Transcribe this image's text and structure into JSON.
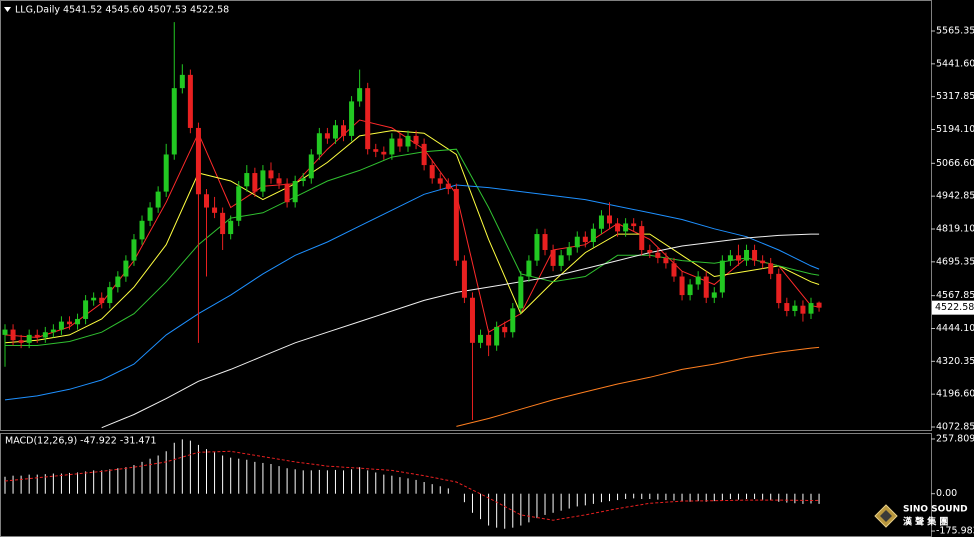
{
  "chart_data": [
    {
      "type": "candlestick",
      "title": "LLG,Daily  4541.52 4545.60 4507.53 4522.58",
      "up_color": "#22c822",
      "down_color": "#e82020",
      "open": [
        4420,
        4440,
        4400,
        4390,
        4420,
        4410,
        4430,
        4440,
        4470,
        4460,
        4480,
        4550,
        4560,
        4540,
        4600,
        4640,
        4700,
        4780,
        4850,
        4900,
        4960,
        5100,
        5350,
        5400,
        5200,
        4950,
        4900,
        4880,
        4800,
        4850,
        4980,
        5030,
        4960,
        5040,
        5010,
        4990,
        4920,
        5000,
        5010,
        5100,
        5180,
        5160,
        5210,
        5170,
        5300,
        5350,
        5120,
        5110,
        5100,
        5160,
        5130,
        5170,
        5140,
        5060,
        5010,
        4990,
        4970,
        4700,
        4560,
        4390,
        4420,
        4380,
        4450,
        4430,
        4520,
        4640,
        4700,
        4800,
        4740,
        4680,
        4720,
        4750,
        4790,
        4770,
        4820,
        4870,
        4840,
        4810,
        4840,
        4830,
        4740,
        4730,
        4710,
        4690,
        4640,
        4570,
        4610,
        4640,
        4560,
        4580,
        4700,
        4720,
        4700,
        4740,
        4700,
        4690,
        4650,
        4540,
        4510,
        4530,
        4500,
        4541.52
      ],
      "high": [
        4460,
        4460,
        4420,
        4440,
        4440,
        4450,
        4460,
        4490,
        4490,
        4500,
        4570,
        4580,
        4580,
        4620,
        4660,
        4720,
        4800,
        4870,
        4920,
        4980,
        5140,
        5599,
        5440,
        5420,
        5220,
        4970,
        4940,
        4900,
        4870,
        5000,
        5060,
        5050,
        5060,
        5070,
        5030,
        5010,
        5020,
        5030,
        5120,
        5200,
        5200,
        5230,
        5230,
        5320,
        5420,
        5370,
        5140,
        5130,
        5180,
        5180,
        5190,
        5190,
        5160,
        5080,
        5030,
        5010,
        4990,
        4720,
        4580,
        4440,
        4440,
        4470,
        4470,
        4540,
        4660,
        4720,
        4820,
        4820,
        4760,
        4740,
        4770,
        4810,
        4810,
        4840,
        4890,
        4920,
        4860,
        4860,
        4860,
        4850,
        4760,
        4750,
        4730,
        4710,
        4660,
        4630,
        4660,
        4660,
        4600,
        4720,
        4740,
        4760,
        4760,
        4760,
        4720,
        4710,
        4670,
        4560,
        4550,
        4550,
        4560,
        4545.6
      ],
      "low": [
        4300,
        4380,
        4370,
        4370,
        4390,
        4390,
        4410,
        4420,
        4440,
        4440,
        4460,
        4530,
        4520,
        4520,
        4580,
        4620,
        4680,
        4760,
        4830,
        4880,
        4940,
        5080,
        5330,
        5180,
        4390,
        4640,
        4860,
        4740,
        4780,
        4830,
        4960,
        4940,
        4940,
        4990,
        4970,
        4900,
        4900,
        4980,
        4990,
        5080,
        5140,
        5140,
        5150,
        5150,
        5280,
        5100,
        5090,
        5080,
        5080,
        5110,
        5110,
        5120,
        5040,
        4990,
        4970,
        4950,
        4680,
        4540,
        4099,
        4370,
        4340,
        4360,
        4410,
        4410,
        4500,
        4620,
        4680,
        4720,
        4660,
        4660,
        4700,
        4730,
        4750,
        4750,
        4800,
        4820,
        4790,
        4790,
        4810,
        4720,
        4710,
        4690,
        4670,
        4620,
        4550,
        4550,
        4590,
        4540,
        4540,
        4560,
        4680,
        4680,
        4680,
        4680,
        4670,
        4630,
        4520,
        4490,
        4490,
        4470,
        4480,
        4507.53
      ],
      "close": [
        4440,
        4400,
        4390,
        4420,
        4410,
        4430,
        4440,
        4470,
        4460,
        4480,
        4550,
        4560,
        4540,
        4600,
        4640,
        4700,
        4780,
        4850,
        4900,
        4960,
        5100,
        5350,
        5400,
        5200,
        4950,
        4900,
        4880,
        4800,
        4850,
        4980,
        5030,
        4960,
        5040,
        5010,
        4990,
        4920,
        5000,
        5010,
        5100,
        5180,
        5160,
        5210,
        5170,
        5300,
        5350,
        5120,
        5110,
        5100,
        5160,
        5130,
        5170,
        5140,
        5060,
        5010,
        4990,
        4970,
        4700,
        4560,
        4390,
        4420,
        4380,
        4450,
        4430,
        4520,
        4640,
        4700,
        4800,
        4740,
        4680,
        4720,
        4750,
        4790,
        4770,
        4820,
        4870,
        4840,
        4810,
        4840,
        4830,
        4740,
        4730,
        4710,
        4690,
        4640,
        4570,
        4610,
        4640,
        4560,
        4580,
        4700,
        4720,
        4700,
        4740,
        4700,
        4690,
        4650,
        4540,
        4510,
        4530,
        4500,
        4540,
        4522.58
      ],
      "series": [
        {
          "color": "#ff2a2a",
          "x": [
            0,
            4,
            8,
            12,
            16,
            20,
            24,
            28,
            32,
            36,
            40,
            44,
            48,
            52,
            56,
            60,
            64,
            68,
            72,
            76,
            80,
            84,
            88,
            92,
            96,
            100,
            101
          ],
          "values": [
            4420,
            4410,
            4450,
            4540,
            4700,
            4920,
            5180,
            4900,
            4980,
            4990,
            5120,
            5230,
            5200,
            5120,
            4950,
            4430,
            4500,
            4740,
            4760,
            4840,
            4780,
            4660,
            4610,
            4710,
            4680,
            4530,
            4525
          ]
        },
        {
          "color": "#ffff40",
          "x": [
            0,
            4,
            8,
            12,
            16,
            20,
            24,
            28,
            32,
            36,
            40,
            44,
            48,
            52,
            56,
            60,
            64,
            68,
            72,
            76,
            80,
            84,
            88,
            92,
            96,
            100,
            101
          ],
          "values": [
            4390,
            4400,
            4420,
            4480,
            4600,
            4760,
            5030,
            5000,
            4930,
            4990,
            5070,
            5170,
            5190,
            5180,
            5100,
            4780,
            4500,
            4620,
            4730,
            4800,
            4800,
            4720,
            4640,
            4660,
            4680,
            4620,
            4610
          ]
        },
        {
          "color": "#30c030",
          "x": [
            0,
            4,
            8,
            12,
            16,
            20,
            24,
            28,
            32,
            36,
            40,
            44,
            48,
            52,
            56,
            60,
            64,
            68,
            72,
            76,
            80,
            84,
            88,
            92,
            96,
            100,
            101
          ],
          "values": [
            4380,
            4380,
            4395,
            4430,
            4500,
            4620,
            4760,
            4860,
            4880,
            4940,
            5000,
            5040,
            5090,
            5110,
            5120,
            4900,
            4650,
            4620,
            4640,
            4720,
            4720,
            4700,
            4690,
            4710,
            4680,
            4650,
            4645
          ]
        },
        {
          "color": "#1e90ff",
          "x": [
            0,
            4,
            8,
            12,
            16,
            20,
            24,
            28,
            32,
            36,
            40,
            44,
            48,
            52,
            56,
            60,
            64,
            68,
            72,
            76,
            80,
            84,
            88,
            92,
            96,
            100,
            101
          ],
          "values": [
            4175,
            4190,
            4215,
            4250,
            4310,
            4420,
            4500,
            4570,
            4650,
            4720,
            4770,
            4830,
            4890,
            4950,
            4985,
            4975,
            4960,
            4945,
            4930,
            4905,
            4880,
            4855,
            4820,
            4790,
            4740,
            4680,
            4668
          ]
        },
        {
          "color": "#f0f0f0",
          "x": [
            0,
            4,
            8,
            12,
            16,
            20,
            24,
            28,
            32,
            36,
            40,
            44,
            48,
            52,
            56,
            60,
            64,
            68,
            72,
            76,
            80,
            84,
            88,
            92,
            96,
            100,
            101
          ],
          "values": [
            null,
            null,
            null,
            4070,
            4120,
            4180,
            4245,
            4290,
            4340,
            4390,
            4430,
            4470,
            4510,
            4550,
            4580,
            4600,
            4620,
            4640,
            4670,
            4700,
            4730,
            4755,
            4770,
            4785,
            4795,
            4800,
            4800
          ]
        },
        {
          "color": "#ff7f20",
          "x": [
            0,
            4,
            8,
            12,
            16,
            20,
            24,
            28,
            32,
            36,
            40,
            44,
            48,
            52,
            56,
            60,
            64,
            68,
            72,
            76,
            80,
            84,
            88,
            92,
            96,
            100,
            101
          ],
          "values": [
            null,
            null,
            null,
            null,
            null,
            null,
            null,
            null,
            null,
            null,
            null,
            null,
            null,
            null,
            4075,
            4105,
            4140,
            4175,
            4205,
            4235,
            4260,
            4290,
            4310,
            4335,
            4355,
            4370,
            4373
          ]
        }
      ],
      "ylim": [
        4061.5,
        5682.2
      ],
      "yticks": [
        5565.35,
        {
          "value": 5441.6,
          "label": "5441.60"
        },
        5317.85,
        {
          "value": 5194.1,
          "label": "5194.10"
        },
        {
          "value": 5066.6,
          "label": "5066.60"
        },
        4942.85,
        {
          "value": 4819.1,
          "label": "4819.10"
        },
        4695.35,
        4567.85,
        {
          "value": 4444.1,
          "label": "4444.10"
        },
        4320.35,
        {
          "value": 4196.6,
          "label": "4196.60"
        },
        4072.85
      ]
    },
    {
      "type": "macd",
      "title": "MACD(12,26,9) -47.922 -31.471",
      "color": "#ffffff",
      "values": [
        80,
        85,
        85,
        90,
        90,
        92,
        95,
        95,
        98,
        100,
        105,
        110,
        110,
        115,
        120,
        125,
        135,
        150,
        165,
        180,
        200,
        240,
        256,
        250,
        230,
        210,
        195,
        180,
        170,
        165,
        160,
        150,
        145,
        140,
        130,
        120,
        115,
        110,
        110,
        112,
        110,
        112,
        110,
        115,
        125,
        110,
        100,
        90,
        85,
        78,
        72,
        65,
        55,
        45,
        35,
        25,
        0,
        -40,
        -90,
        -120,
        -150,
        -160,
        -165,
        -160,
        -150,
        -135,
        -115,
        -100,
        -90,
        -80,
        -70,
        -60,
        -55,
        -48,
        -40,
        -35,
        -30,
        -25,
        -22,
        -25,
        -25,
        -28,
        -30,
        -32,
        -35,
        -38,
        -35,
        -38,
        -35,
        -30,
        -25,
        -28,
        -25,
        -25,
        -28,
        -30,
        -38,
        -42,
        -45,
        -48,
        -46,
        -47.922
      ],
      "signal": {
        "color": "#e82020",
        "x": [
          0,
          4,
          8,
          12,
          16,
          20,
          24,
          28,
          32,
          36,
          40,
          44,
          48,
          52,
          56,
          60,
          64,
          68,
          72,
          76,
          80,
          84,
          88,
          92,
          96,
          100,
          101
        ],
        "values": [
          60,
          75,
          90,
          105,
          125,
          150,
          195,
          200,
          175,
          150,
          130,
          120,
          110,
          85,
          55,
          -20,
          -100,
          -125,
          -100,
          -70,
          -45,
          -35,
          -33,
          -30,
          -30,
          -32,
          -31.471
        ]
      },
      "ylim": [
        -204,
        286
      ],
      "yticks": [
        257.809,
        {
          "value": 0,
          "label": "0.00"
        },
        -175.983
      ]
    }
  ],
  "logo": {
    "name": "SINO SOUND",
    "chinese": "漢 聲 集 團"
  }
}
